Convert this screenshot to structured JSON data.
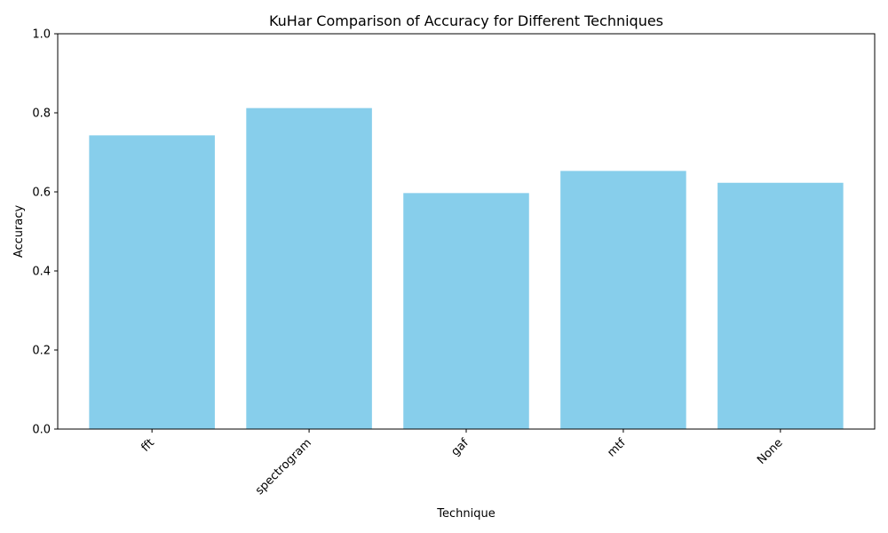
{
  "chart_data": {
    "type": "bar",
    "title": "KuHar Comparison of Accuracy for Different Techniques",
    "xlabel": "Technique",
    "ylabel": "Accuracy",
    "categories": [
      "fft",
      "spectrogram",
      "gaf",
      "mtf",
      "None"
    ],
    "values": [
      0.743,
      0.812,
      0.597,
      0.653,
      0.623
    ],
    "ylim": [
      0,
      1.0
    ],
    "yticks": [
      0.0,
      0.2,
      0.4,
      0.6,
      0.8,
      1.0
    ],
    "ytick_labels": [
      "0.0",
      "0.2",
      "0.4",
      "0.6",
      "0.8",
      "1.0"
    ],
    "xtick_rotation_deg": 45,
    "bar_color": "#87ceeb",
    "grid": false,
    "legend": "none"
  }
}
